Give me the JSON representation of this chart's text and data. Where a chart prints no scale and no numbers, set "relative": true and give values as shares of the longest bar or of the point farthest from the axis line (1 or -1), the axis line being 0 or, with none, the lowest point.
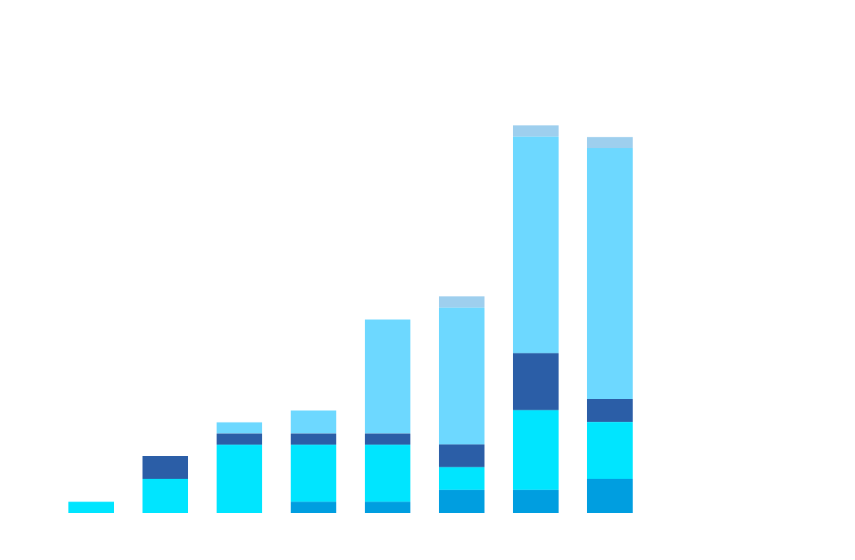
{
  "chart_data": {
    "type": "bar",
    "stacked": true,
    "relative": true,
    "categories": [
      null,
      null,
      null,
      null,
      null,
      null,
      null,
      null
    ],
    "series": [
      {
        "color": "#009ee0",
        "values": [
          null,
          null,
          null,
          0.029,
          0.029,
          0.059,
          0.059,
          0.088
        ]
      },
      {
        "color": "#00e5ff",
        "values": [
          0.029,
          0.088,
          0.176,
          0.147,
          0.147,
          0.059,
          0.206,
          0.147
        ]
      },
      {
        "color": "#2b5ea7",
        "values": [
          null,
          0.059,
          0.029,
          0.029,
          0.029,
          0.059,
          0.147,
          0.059
        ]
      },
      {
        "color": "#6dd8ff",
        "values": [
          null,
          null,
          0.029,
          0.059,
          0.294,
          0.353,
          0.559,
          0.647
        ]
      },
      {
        "color": "#9ecfee",
        "values": [
          null,
          null,
          null,
          null,
          null,
          0.029,
          0.029,
          0.029
        ]
      }
    ]
  }
}
